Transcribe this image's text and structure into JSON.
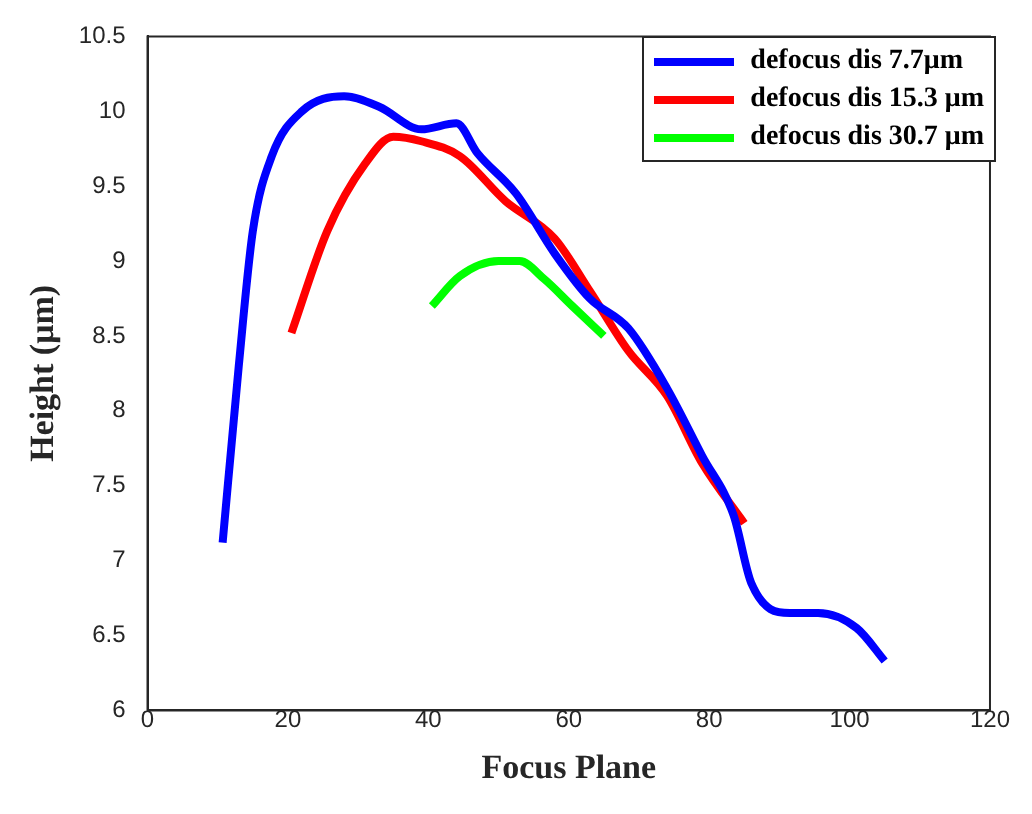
{
  "chart_data": {
    "type": "line",
    "xlabel": "Focus Plane",
    "ylabel": "Height (μm)",
    "xlim": [
      0,
      120
    ],
    "xticks": [
      0,
      20,
      40,
      60,
      80,
      100,
      120
    ],
    "ylim": [
      6,
      10.5
    ],
    "yticks": [
      6,
      6.5,
      7,
      7.5,
      8,
      8.5,
      9,
      9.5,
      10,
      10.5
    ],
    "legend": "top right",
    "marker": "none",
    "line_style": "solid",
    "series": [
      {
        "name": "defocus dis 7.7μm",
        "color": "#0000ff",
        "x": [
          10.7,
          13,
          15,
          17.7,
          22,
          28,
          33,
          39,
          44,
          47,
          52.5,
          58,
          63,
          68.5,
          74,
          79,
          83.5,
          86,
          91.5,
          95.5,
          101,
          105
        ],
        "values": [
          7.12,
          8.3,
          9.2,
          9.7,
          10.0,
          10.1,
          10.03,
          9.88,
          9.92,
          9.72,
          9.45,
          9.05,
          8.75,
          8.55,
          8.15,
          7.7,
          7.3,
          6.85,
          6.65,
          6.65,
          6.55,
          6.33
        ]
      },
      {
        "name": "defocus dis 15.3 μm",
        "color": "#ff0000",
        "x": [
          20.5,
          25.6,
          31,
          35,
          39,
          44.5,
          51,
          58,
          63,
          68.5,
          74,
          79,
          85
        ],
        "values": [
          8.52,
          9.2,
          9.65,
          9.83,
          9.8,
          9.7,
          9.4,
          9.15,
          8.8,
          8.4,
          8.1,
          7.65,
          7.25
        ]
      },
      {
        "name": "defocus dis 30.7 μm",
        "color": "#00ff00",
        "x": [
          40.5,
          44.5,
          50,
          53,
          56.5,
          60.5,
          65
        ],
        "values": [
          8.7,
          8.9,
          9.0,
          9.0,
          8.88,
          8.7,
          8.5
        ]
      }
    ]
  }
}
